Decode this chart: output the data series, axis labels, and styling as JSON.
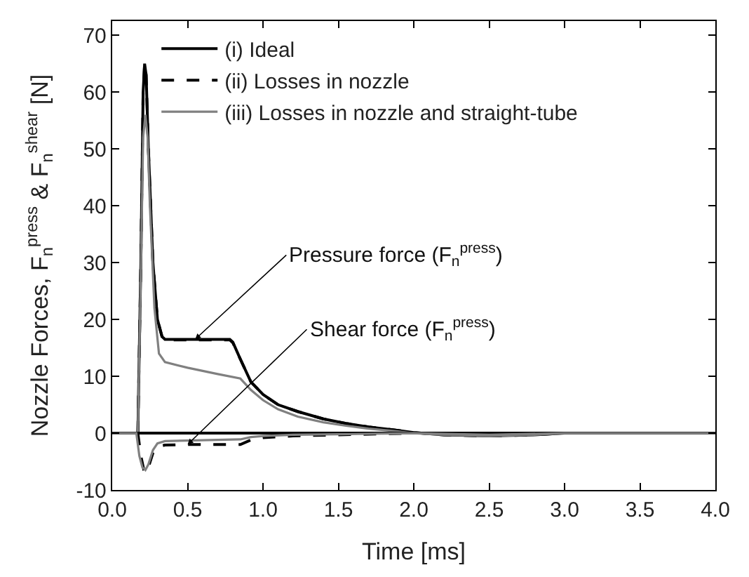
{
  "chart_data": {
    "type": "line",
    "xlabel": "Time [ms]",
    "ylabel": "Nozzle Forces, F$_{n}$$^{press}$ & F$_{n}$$^{shear}$ [N]",
    "xlim": [
      0,
      4
    ],
    "ylim": [
      -10,
      72.5
    ],
    "xticks": [
      {
        "value": 0,
        "label": "0.0"
      },
      0.5,
      {
        "value": 1,
        "label": "1.0"
      },
      1.5,
      {
        "value": 2,
        "label": "2.0"
      },
      2.5,
      {
        "value": 3,
        "label": "3.0"
      },
      3.5,
      {
        "value": 4,
        "label": "4.0"
      }
    ],
    "yticks": [
      -10,
      0,
      10,
      20,
      30,
      40,
      50,
      60,
      70
    ],
    "legend": "top left",
    "marker": "none",
    "series": [
      {
        "name": "(i) Ideal",
        "color": "#000000",
        "line_style": "solid",
        "x": [
          0,
          0.17,
          0.19,
          0.205,
          0.215,
          0.225,
          0.24,
          0.27,
          0.3,
          0.33,
          0.35,
          0.5,
          0.78,
          0.8,
          0.85,
          0.92,
          1.0,
          1.1,
          1.23,
          1.4,
          1.55,
          1.7,
          1.86,
          2.0,
          2.2,
          2.5,
          2.8,
          3.0,
          4.0
        ],
        "values": [
          0,
          0,
          30,
          60,
          65,
          63,
          50,
          30,
          20,
          17,
          16.5,
          16.5,
          16.5,
          16,
          13,
          9,
          6.8,
          5,
          3.8,
          2.5,
          1.7,
          1.1,
          0.6,
          0.1,
          -0.3,
          -0.5,
          -0.3,
          0,
          0
        ]
      },
      {
        "name": "(ii) Losses in nozzle",
        "color": "#000000",
        "line_style": "dashed",
        "x": [
          0,
          0.17,
          0.19,
          0.205,
          0.215,
          0.225,
          0.24,
          0.27,
          0.3,
          0.33,
          0.35,
          0.5,
          0.78,
          0.8,
          0.85,
          0.92,
          1.0,
          1.1,
          1.23,
          1.4,
          1.55,
          1.7,
          1.86,
          2.0,
          2.2,
          2.5,
          2.8,
          3.0,
          4.0
        ],
        "values": [
          0,
          0,
          30,
          60,
          65,
          63,
          50,
          30,
          20,
          17,
          16.4,
          16.4,
          16.4,
          15.9,
          13,
          9,
          6.8,
          5,
          3.8,
          2.5,
          1.7,
          1.1,
          0.6,
          0.1,
          -0.3,
          -0.5,
          -0.3,
          0,
          0
        ]
      },
      {
        "name": "(iii) Losses in nozzle and straight-tube",
        "color": "#808080",
        "line_style": "solid",
        "x": [
          0,
          0.17,
          0.19,
          0.205,
          0.22,
          0.235,
          0.25,
          0.28,
          0.31,
          0.35,
          0.5,
          0.7,
          0.85,
          0.92,
          1.0,
          1.1,
          1.23,
          1.4,
          1.55,
          1.7,
          1.86,
          2.0,
          2.2,
          2.5,
          2.8,
          3.0,
          4.0
        ],
        "values": [
          0,
          0,
          28,
          52,
          56,
          52,
          40,
          22,
          14,
          12.5,
          11.5,
          10.4,
          9.6,
          7.6,
          5.8,
          4.2,
          2.9,
          1.9,
          1.3,
          0.8,
          0.4,
          0,
          -0.3,
          -0.5,
          -0.3,
          0,
          0
        ]
      },
      {
        "color": "#000000",
        "line_style": "solid",
        "x": [
          0,
          4.0
        ],
        "values": [
          0,
          0
        ]
      },
      {
        "color": "#000000",
        "line_style": "dashed",
        "x": [
          0,
          0.17,
          0.19,
          0.21,
          0.225,
          0.24,
          0.27,
          0.3,
          0.35,
          0.5,
          0.85,
          0.92,
          1.0,
          1.2,
          1.5,
          2.0,
          4.0
        ],
        "values": [
          0,
          0,
          -4,
          -6.5,
          -7,
          -6,
          -3.5,
          -2.4,
          -2.1,
          -2,
          -2,
          -1.2,
          -0.8,
          -0.5,
          -0.3,
          0,
          0
        ]
      },
      {
        "color": "#808080",
        "line_style": "solid",
        "x": [
          0,
          0.16,
          0.18,
          0.2,
          0.22,
          0.24,
          0.27,
          0.3,
          0.35,
          0.5,
          0.85,
          0.92,
          1.0,
          1.2,
          1.5,
          2.0,
          2.5,
          3.0,
          4.0
        ],
        "values": [
          0,
          0,
          -4,
          -6,
          -6.5,
          -5.5,
          -3,
          -1.8,
          -1.4,
          -1.3,
          -1.1,
          -0.7,
          -0.5,
          -0.3,
          -0.2,
          0,
          -0.3,
          0,
          0
        ]
      }
    ],
    "annotations": [
      {
        "text": "Pressure force (F$_{n}$$^{press}$)",
        "x": 0.55,
        "y": 16.5
      },
      {
        "text": "Shear force (F$_{n}$$^{press}$)",
        "x": 0.5,
        "y": -2
      }
    ]
  }
}
